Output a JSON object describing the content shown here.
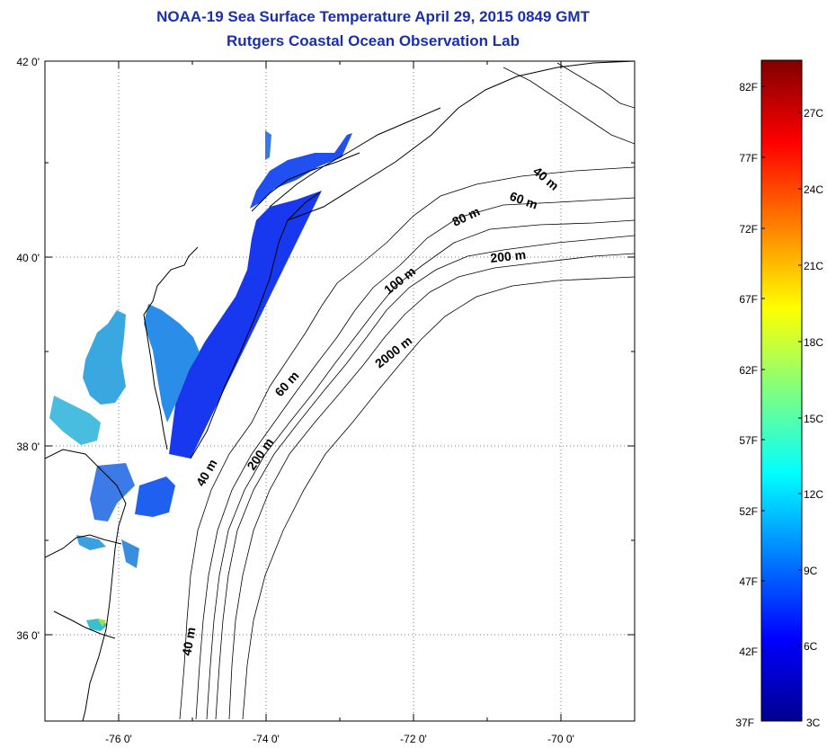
{
  "header": {
    "title": "NOAA-19 Sea Surface Temperature April 29, 2015 0849 GMT",
    "subtitle": "Rutgers Coastal Ocean Observation Lab"
  },
  "map": {
    "lon_ticks": [
      "-76 0'",
      "-74 0'",
      "-72 0'",
      "-70 0'"
    ],
    "lat_ticks": [
      "42 0'",
      "40 0'",
      "38 0'",
      "36 0'"
    ],
    "lon_range": [
      -77,
      -69
    ],
    "lat_range": [
      35,
      42
    ],
    "contour_labels": [
      "40 m",
      "60 m",
      "80 m",
      "200 m",
      "100 m",
      "2000 m",
      "60 m",
      "200 m",
      "40 m",
      "40 m"
    ],
    "colors": {
      "land_line": "#000000",
      "grid": "#777777",
      "title": "#1a2fb0"
    }
  },
  "colorbar": {
    "fahrenheit_labels": [
      "82F",
      "77F",
      "72F",
      "67F",
      "62F",
      "57F",
      "52F",
      "47F",
      "42F",
      "37F"
    ],
    "celsius_labels": [
      "27C",
      "24C",
      "21C",
      "18C",
      "15C",
      "12C",
      "9C",
      "6C",
      "3C"
    ],
    "range_c": [
      3,
      28
    ],
    "colormap": "jet"
  }
}
